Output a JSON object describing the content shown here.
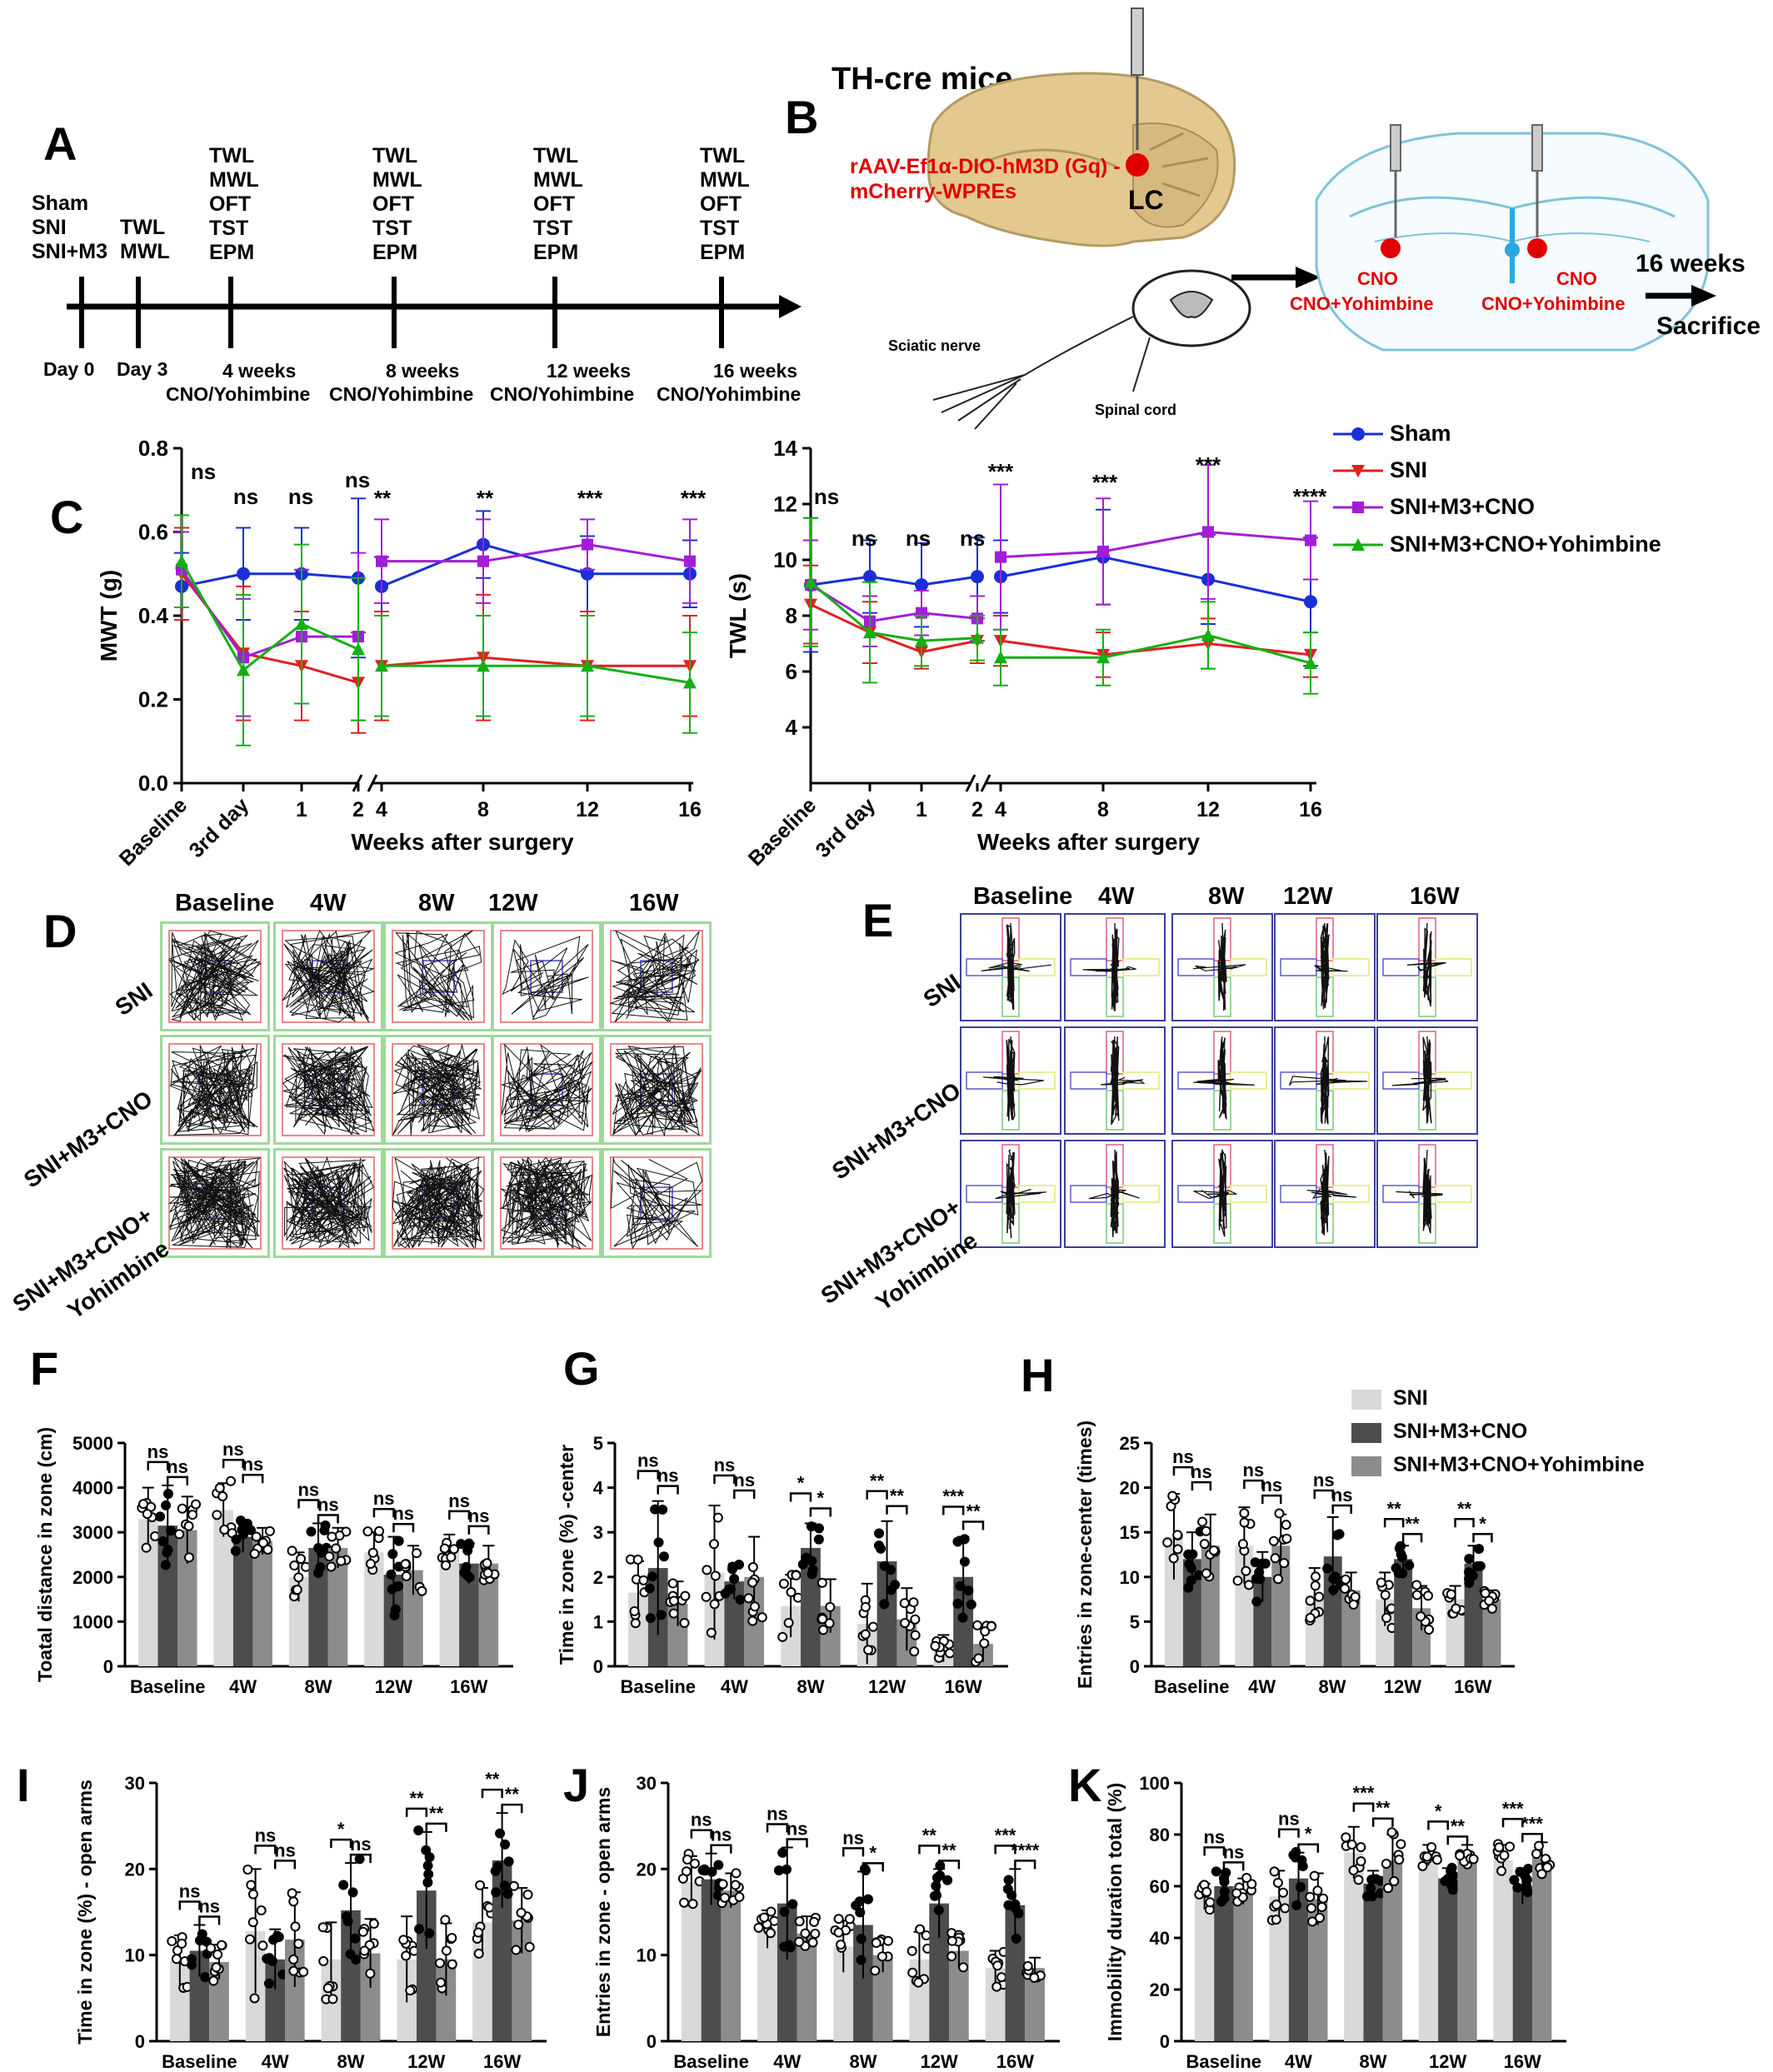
{
  "panelA": {
    "label": "A",
    "groups": [
      "Sham",
      "SNI",
      "SNI+M3"
    ],
    "day3_tests": [
      "TWL",
      "MWL"
    ],
    "week_tests": [
      "TWL",
      "MWL",
      "OFT",
      "TST",
      "EPM"
    ],
    "timepoints": [
      "Day 0",
      "Day 3",
      "4 weeks",
      "8 weeks",
      "12 weeks",
      "16 weeks"
    ],
    "treatment": "CNO/Yohimbine"
  },
  "panelB": {
    "label": "B",
    "title": "TH-cre mice",
    "virus_line1": "rAAV-Ef1α-DIO-hM3D (Gq) -",
    "virus_line2": "mCherry-WPREs",
    "lc": "LC",
    "sciatic": "Sciatic nerve",
    "spinal": "Spinal cord",
    "cno": "CNO",
    "cno_yoh": "CNO+Yohimbine",
    "weeks": "16 weeks",
    "sacrifice": "Sacrifice"
  },
  "panelC": {
    "label": "C",
    "legend": [
      "Sham",
      "SNI",
      "SNI+M3+CNO",
      "SNI+M3+CNO+Yohimbine"
    ],
    "colors": [
      "#1a2fd6",
      "#e02020",
      "#a21ed6",
      "#12b012"
    ],
    "xlabel": "Weeks after surgery",
    "xticks": [
      "Baseline",
      "3rd day",
      "1",
      "2",
      "4",
      "8",
      "12",
      "16"
    ]
  },
  "panelD": {
    "label": "D",
    "cols": [
      "Baseline",
      "4W",
      "8W",
      "12W",
      "16W"
    ],
    "rows": [
      "SNI",
      "SNI+M3+CNO",
      "SNI+M3+CNO+",
      "Yohimbine"
    ]
  },
  "panelE": {
    "label": "E",
    "cols": [
      "Baseline",
      "4W",
      "8W",
      "12W",
      "16W"
    ],
    "rows": [
      "SNI",
      "SNI+M3+CNO",
      "SNI+M3+CNO+",
      "Yohimbine"
    ]
  },
  "barLegend": [
    "SNI",
    "SNI+M3+CNO",
    "SNI+M3+CNO+Yohimbine"
  ],
  "barColors": [
    "#d9d9d9",
    "#4d4d4d",
    "#8c8c8c"
  ],
  "chart_data": [
    {
      "panel": "C-left",
      "type": "line",
      "x": [
        "Baseline",
        "3rd day",
        "1",
        "2",
        "4",
        "8",
        "12",
        "16"
      ],
      "ylabel": "MWT (g)",
      "xlabel": "Weeks after surgery",
      "ylim": [
        0,
        0.8
      ],
      "yticks": [
        "0.0",
        "0.2",
        "0.4",
        "0.6",
        "0.8"
      ],
      "series": [
        {
          "name": "Sham",
          "values": [
            0.47,
            0.5,
            0.5,
            0.49,
            0.47,
            0.57,
            0.5,
            0.5
          ],
          "err": [
            0.08,
            0.11,
            0.11,
            0.19,
            0.07,
            0.08,
            0.09,
            0.08
          ]
        },
        {
          "name": "SNI",
          "values": [
            0.5,
            0.31,
            0.28,
            0.24,
            0.28,
            0.3,
            0.28,
            0.28
          ],
          "err": [
            0.11,
            0.16,
            0.13,
            0.12,
            0.13,
            0.15,
            0.13,
            0.12
          ]
        },
        {
          "name": "SNI+M3+CNO",
          "values": [
            0.51,
            0.3,
            0.35,
            0.35,
            0.53,
            0.53,
            0.57,
            0.53
          ],
          "err": [
            0.09,
            0.14,
            0.16,
            0.2,
            0.1,
            0.1,
            0.06,
            0.1
          ]
        },
        {
          "name": "SNI+M3+CNO+Yohimbine",
          "values": [
            0.53,
            0.27,
            0.38,
            0.32,
            0.28,
            0.28,
            0.28,
            0.24
          ],
          "err": [
            0.11,
            0.18,
            0.19,
            0.17,
            0.12,
            0.12,
            0.12,
            0.12
          ]
        }
      ],
      "annotations": [
        "ns",
        "ns",
        "ns",
        "ns",
        "**",
        "**",
        "***",
        "***"
      ]
    },
    {
      "panel": "C-right",
      "type": "line",
      "x": [
        "Baseline",
        "3rd day",
        "1",
        "2",
        "4",
        "8",
        "12",
        "16"
      ],
      "ylabel": "TWL (s)",
      "xlabel": "Weeks after surgery",
      "ylim": [
        2,
        14
      ],
      "yticks": [
        "4",
        "6",
        "8",
        "10",
        "12",
        "14"
      ],
      "series": [
        {
          "name": "Sham",
          "values": [
            9.1,
            9.4,
            9.1,
            9.4,
            9.4,
            10.1,
            9.3,
            8.5
          ],
          "err": [
            2.4,
            1.3,
            1.5,
            1.4,
            1.3,
            1.7,
            1.6,
            2.3
          ]
        },
        {
          "name": "SNI",
          "values": [
            8.4,
            7.4,
            6.7,
            7.1,
            7.1,
            6.6,
            7.0,
            6.6
          ],
          "err": [
            1.4,
            1.1,
            0.6,
            0.8,
            0.9,
            0.8,
            0.9,
            0.8
          ]
        },
        {
          "name": "SNI+M3+CNO",
          "values": [
            9.1,
            7.8,
            8.1,
            7.9,
            10.1,
            10.3,
            11.0,
            10.7
          ],
          "err": [
            1.6,
            0.9,
            0.8,
            0.8,
            2.6,
            1.9,
            2.4,
            1.4
          ]
        },
        {
          "name": "SNI+M3+CNO+Yohimbine",
          "values": [
            9.2,
            7.4,
            7.1,
            7.2,
            6.5,
            6.5,
            7.3,
            6.3
          ],
          "err": [
            2.3,
            1.8,
            0.9,
            0.8,
            1.0,
            1.0,
            1.2,
            1.1
          ]
        }
      ],
      "annotations": [
        "ns",
        "ns",
        "ns",
        "ns",
        "***",
        "***",
        "***",
        "****"
      ]
    },
    {
      "panel": "F",
      "type": "bar",
      "ylabel": "Toatal distance in zone (cm)",
      "categories": [
        "Baseline",
        "4W",
        "8W",
        "12W",
        "16W"
      ],
      "ylim": [
        0,
        5000
      ],
      "yticks": [
        "0",
        "1000",
        "2000",
        "3000",
        "4000",
        "5000"
      ],
      "series": [
        {
          "name": "SNI",
          "values": [
            3300,
            3500,
            2000,
            2550,
            2600
          ],
          "err": [
            700,
            600,
            550,
            450,
            350
          ]
        },
        {
          "name": "SNI+M3+CNO",
          "values": [
            3150,
            2900,
            2650,
            2050,
            2300
          ],
          "err": [
            900,
            350,
            550,
            850,
            450
          ]
        },
        {
          "name": "SNI+M3+CNO+Yohimbine",
          "values": [
            3050,
            2800,
            2650,
            2150,
            2300
          ],
          "err": [
            750,
            300,
            450,
            550,
            400
          ]
        }
      ],
      "brackets": [
        [
          "ns",
          "ns"
        ],
        [
          "ns",
          "ns"
        ],
        [
          "ns",
          "ns"
        ],
        [
          "ns",
          "ns"
        ],
        [
          "ns",
          "ns"
        ]
      ]
    },
    {
      "panel": "G",
      "type": "bar",
      "ylabel": "Time in zone (%) -center",
      "categories": [
        "Baseline",
        "4W",
        "8W",
        "12W",
        "16W"
      ],
      "ylim": [
        0,
        5
      ],
      "yticks": [
        "0",
        "1",
        "2",
        "3",
        "4",
        "5"
      ],
      "series": [
        {
          "name": "SNI",
          "values": [
            1.65,
            2.1,
            1.35,
            0.95,
            0.4
          ],
          "err": [
            0.7,
            1.5,
            0.7,
            0.9,
            0.3
          ]
        },
        {
          "name": "SNI+M3+CNO",
          "values": [
            2.2,
            1.9,
            2.65,
            2.35,
            2.0
          ],
          "err": [
            1.5,
            0.4,
            0.55,
            0.9,
            0.9
          ]
        },
        {
          "name": "SNI+M3+CNO+Yohimbine",
          "values": [
            1.4,
            2.0,
            1.35,
            1.05,
            0.5
          ],
          "err": [
            0.5,
            0.9,
            0.6,
            0.7,
            0.4
          ]
        }
      ],
      "brackets": [
        [
          "ns",
          "ns"
        ],
        [
          "ns",
          "ns"
        ],
        [
          "*",
          "*"
        ],
        [
          "**",
          "**"
        ],
        [
          "***",
          "**"
        ]
      ]
    },
    {
      "panel": "H",
      "type": "bar",
      "ylabel": "Entries in zone-center (times)",
      "categories": [
        "Baseline",
        "4W",
        "8W",
        "12W",
        "16W"
      ],
      "ylim": [
        0,
        25
      ],
      "yticks": [
        "0",
        "5",
        "10",
        "15",
        "20",
        "25"
      ],
      "series": [
        {
          "name": "SNI",
          "values": [
            14.5,
            13.5,
            8.0,
            7.5,
            7.5
          ],
          "err": [
            4.8,
            4.3,
            3.0,
            3.0,
            1.5
          ]
        },
        {
          "name": "SNI+M3+CNO",
          "values": [
            12.0,
            10.0,
            12.3,
            12.0,
            11.5
          ],
          "err": [
            3.0,
            2.8,
            4.4,
            1.5,
            2.0
          ]
        },
        {
          "name": "SNI+M3+CNO+Yohimbine",
          "values": [
            13.5,
            13.5,
            8.5,
            6.5,
            7.5
          ],
          "err": [
            3.5,
            3.5,
            2.0,
            2.5,
            1.0
          ]
        }
      ],
      "brackets": [
        [
          "ns",
          "ns"
        ],
        [
          "ns",
          "ns"
        ],
        [
          "ns",
          "ns"
        ],
        [
          "**",
          "**"
        ],
        [
          "**",
          "*"
        ]
      ]
    },
    {
      "panel": "I",
      "type": "bar",
      "ylabel": "Time in zone (%) - open arms",
      "categories": [
        "Baseline",
        "4W",
        "8W",
        "12W",
        "16W"
      ],
      "ylim": [
        0,
        30
      ],
      "yticks": [
        "0",
        "10",
        "20",
        "30"
      ],
      "series": [
        {
          "name": "SNI",
          "values": [
            9.3,
            12.8,
            9.5,
            9.5,
            13.8
          ],
          "err": [
            3.0,
            7.2,
            4.3,
            5.0,
            4.0
          ]
        },
        {
          "name": "SNI+M3+CNO",
          "values": [
            10.5,
            9.5,
            15.2,
            17.5,
            21.0
          ],
          "err": [
            3.0,
            3.5,
            5.5,
            6.8,
            5.5
          ]
        },
        {
          "name": "SNI+M3+CNO+Yohimbine",
          "values": [
            9.2,
            11.8,
            10.2,
            9.5,
            14.0
          ],
          "err": [
            2.0,
            5.5,
            4.0,
            4.2,
            3.8
          ]
        }
      ],
      "brackets": [
        [
          "ns",
          "ns"
        ],
        [
          "ns",
          "ns"
        ],
        [
          "*",
          "ns"
        ],
        [
          "**",
          "**"
        ],
        [
          "**",
          "**"
        ]
      ]
    },
    {
      "panel": "J",
      "type": "bar",
      "ylabel": "Entries in zone - open arms",
      "categories": [
        "Baseline",
        "4W",
        "8W",
        "12W",
        "16W"
      ],
      "ylim": [
        0,
        30
      ],
      "yticks": [
        "0",
        "10",
        "20",
        "30"
      ],
      "series": [
        {
          "name": "SNI",
          "values": [
            18.5,
            13.0,
            11.0,
            9.5,
            8.5
          ],
          "err": [
            3.0,
            2.2,
            3.0,
            3.2,
            2.0
          ]
        },
        {
          "name": "SNI+M3+CNO",
          "values": [
            18.8,
            16.0,
            13.5,
            16.0,
            15.8
          ],
          "err": [
            3.0,
            6.5,
            6.2,
            4.0,
            4.2
          ]
        },
        {
          "name": "SNI+M3+CNO+Yohimbine",
          "values": [
            17.5,
            12.5,
            10.0,
            10.5,
            8.5
          ],
          "err": [
            2.0,
            2.0,
            2.0,
            2.0,
            1.2
          ]
        }
      ],
      "brackets": [
        [
          "ns",
          "ns"
        ],
        [
          "ns",
          "ns"
        ],
        [
          "ns",
          "*"
        ],
        [
          "**",
          "**"
        ],
        [
          "***",
          "****"
        ]
      ]
    },
    {
      "panel": "K",
      "type": "bar",
      "ylabel": "Immobility duration total (%)",
      "categories": [
        "Baseline",
        "4W",
        "8W",
        "12W",
        "16W"
      ],
      "ylim": [
        0,
        100
      ],
      "yticks": [
        "0",
        "20",
        "40",
        "60",
        "80",
        "100"
      ],
      "series": [
        {
          "name": "SNI",
          "values": [
            56,
            56,
            73,
            72,
            70
          ],
          "err": [
            5,
            10,
            10,
            4,
            6
          ]
        },
        {
          "name": "SNI+M3+CNO",
          "values": [
            60,
            63,
            61,
            63,
            60
          ],
          "err": [
            6,
            10,
            5,
            4,
            7
          ]
        },
        {
          "name": "SNI+M3+CNO+Yohimbine",
          "values": [
            58,
            55,
            70,
            72,
            71
          ],
          "err": [
            5,
            10,
            10,
            4,
            6
          ]
        }
      ],
      "brackets": [
        [
          "ns",
          "ns"
        ],
        [
          "ns",
          "*"
        ],
        [
          "***",
          "**"
        ],
        [
          "*",
          "**"
        ],
        [
          "***",
          "***"
        ]
      ]
    }
  ]
}
